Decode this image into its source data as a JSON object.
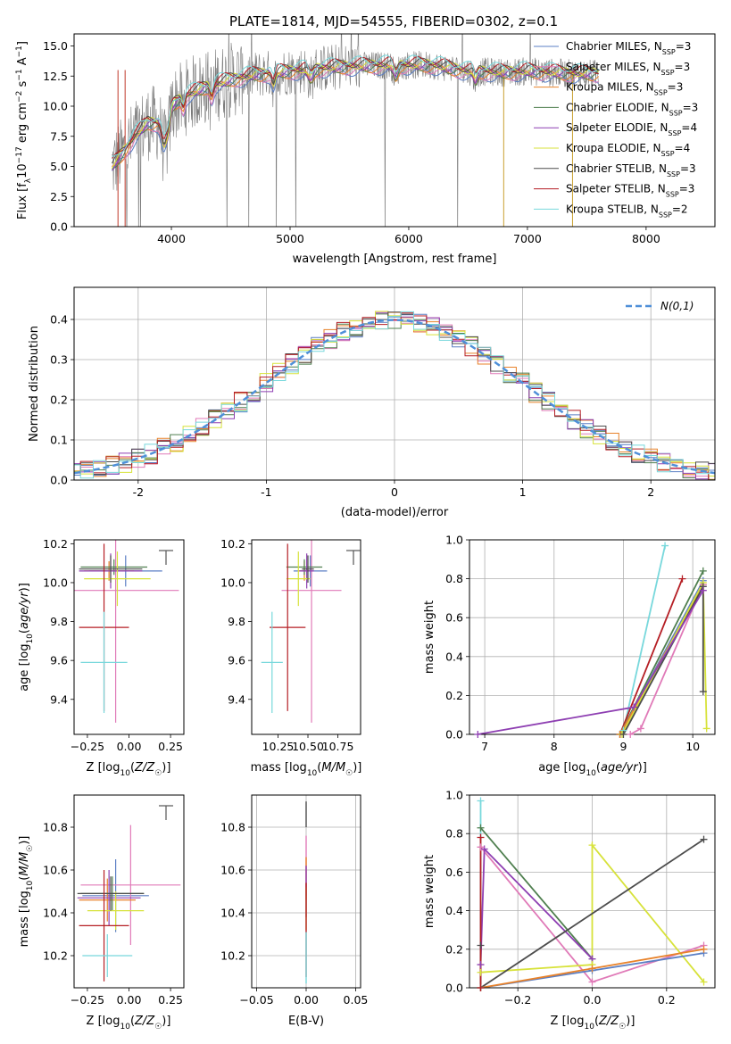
{
  "figure": {
    "title": "PLATE=1814, MJD=54555, FIBERID=0302, z=0.1"
  },
  "colors": {
    "Chabrier MILES": "#5b7fc4",
    "Salpeter MILES": "#e07ab8",
    "Kroupa MILES": "#e8822a",
    "Chabrier ELODIE": "#4f7f4f",
    "Salpeter ELODIE": "#8e3fb2",
    "Kroupa ELODIE": "#d7e23a",
    "Chabrier STELIB": "#4d4d4d",
    "Salpeter STELIB": "#b51e24",
    "Kroupa STELIB": "#78d8dc",
    "normal": "#4f8fd8"
  },
  "chart_data": [
    {
      "type": "line",
      "panel": "spectrum",
      "xlabel": "wavelength [Angstrom, rest frame]",
      "ylabel": "Flux [f_λ 10^-17 erg cm^-2 s^-1 A^-1]",
      "xlim": [
        3180,
        8580
      ],
      "ylim": [
        0,
        16
      ],
      "xticks": [
        4000,
        5000,
        6000,
        7000,
        8000
      ],
      "yticks": [
        "0.0",
        "2.5",
        "5.0",
        "7.5",
        "10.0",
        "12.5",
        "15.0"
      ],
      "legend_position": "right",
      "x": [
        3500,
        3600,
        3700,
        3800,
        3900,
        4000,
        4100,
        4200,
        4300,
        4500,
        4700,
        5000,
        5200,
        5500,
        5800,
        6000,
        6200,
        6500,
        6800,
        7000,
        7200,
        7400,
        7600
      ],
      "y": [
        5.0,
        6.2,
        7.6,
        8.6,
        8.6,
        10.0,
        10.8,
        11.2,
        11.6,
        12.2,
        12.6,
        12.9,
        13.1,
        13.3,
        13.4,
        13.4,
        13.4,
        12.9,
        12.8,
        12.9,
        12.8,
        12.7,
        12.7
      ],
      "series": [
        {
          "name": "Chabrier MILES, N_SSP=3"
        },
        {
          "name": "Salpeter MILES, N_SSP=3"
        },
        {
          "name": "Kroupa MILES, N_SSP=3"
        },
        {
          "name": "Chabrier ELODIE, N_SSP=3"
        },
        {
          "name": "Salpeter ELODIE, N_SSP=4"
        },
        {
          "name": "Kroupa ELODIE, N_SSP=4"
        },
        {
          "name": "Chabrier STELIB, N_SSP=3"
        },
        {
          "name": "Salpeter STELIB, N_SSP=3"
        },
        {
          "name": "Kroupa STELIB, N_SSP=2"
        }
      ]
    },
    {
      "type": "line",
      "panel": "residual-histogram",
      "xlabel": "(data-model)/error",
      "ylabel": "Normed distribution",
      "xlim": [
        -2.5,
        2.5
      ],
      "ylim": [
        0,
        0.48
      ],
      "xticks": [
        -2,
        -1,
        0,
        1,
        2
      ],
      "yticks": [
        "0.0",
        "0.1",
        "0.2",
        "0.3",
        "0.4"
      ],
      "grid": true,
      "legend": "N(0,1)",
      "legend_position": "top-right",
      "bin_width": 0.1
    },
    {
      "type": "scatter",
      "panel": "age-vs-Z",
      "xlabel": "Z [log10(Z/Z☉)]",
      "ylabel": "age [log10(age/yr)]",
      "xlim": [
        -0.33,
        0.33
      ],
      "ylim": [
        9.22,
        10.22
      ],
      "xticks": [
        "−0.25",
        "0.00",
        "0.25"
      ],
      "yticks": [
        "9.4",
        "9.6",
        "9.8",
        "10.0",
        "10.2"
      ],
      "points": [
        {
          "series": "Chabrier MILES",
          "x": -0.02,
          "y": 10.06,
          "xerr": 0.22,
          "yerr": 0.08
        },
        {
          "series": "Salpeter MILES",
          "x": -0.08,
          "y": 9.96,
          "xerr": 0.38,
          "yerr": 0.68
        },
        {
          "series": "Kroupa MILES",
          "x": -0.12,
          "y": 10.06,
          "xerr": 0.15,
          "yerr": 0.05
        },
        {
          "series": "Chabrier ELODIE",
          "x": -0.09,
          "y": 10.08,
          "xerr": 0.2,
          "yerr": 0.04
        },
        {
          "series": "Salpeter ELODIE",
          "x": -0.11,
          "y": 10.06,
          "xerr": 0.19,
          "yerr": 0.09
        },
        {
          "series": "Kroupa ELODIE",
          "x": -0.07,
          "y": 10.02,
          "xerr": 0.2,
          "yerr": 0.14
        },
        {
          "series": "Chabrier STELIB",
          "x": -0.11,
          "y": 10.07,
          "xerr": 0.19,
          "yerr": 0.07
        },
        {
          "series": "Salpeter STELIB",
          "x": -0.15,
          "y": 9.77,
          "xerr": 0.15,
          "yerr": 0.43
        },
        {
          "series": "Kroupa STELIB",
          "x": -0.15,
          "y": 9.59,
          "xerr": 0.14,
          "yerr": 0.26
        }
      ]
    },
    {
      "type": "scatter",
      "panel": "age-vs-mass",
      "xlabel": "mass [log10(M/M☉)]",
      "ylabel": "",
      "xlim": [
        10.03,
        10.94
      ],
      "ylim": [
        9.22,
        10.22
      ],
      "xticks": [
        "10.25",
        "10.50",
        "10.75"
      ],
      "yticks": [
        "9.4",
        "9.6",
        "9.8",
        "10.0",
        "10.2"
      ],
      "points": [
        {
          "series": "Chabrier MILES",
          "x": 10.52,
          "y": 10.06,
          "xerr": 0.14,
          "yerr": 0.08
        },
        {
          "series": "Salpeter MILES",
          "x": 10.53,
          "y": 9.96,
          "xerr": 0.25,
          "yerr": 0.68
        },
        {
          "series": "Kroupa MILES",
          "x": 10.47,
          "y": 10.06,
          "xerr": 0.05,
          "yerr": 0.05
        },
        {
          "series": "Chabrier ELODIE",
          "x": 10.47,
          "y": 10.08,
          "xerr": 0.15,
          "yerr": 0.04
        },
        {
          "series": "Salpeter ELODIE",
          "x": 10.49,
          "y": 10.06,
          "xerr": 0.06,
          "yerr": 0.09
        },
        {
          "series": "Kroupa ELODIE",
          "x": 10.42,
          "y": 10.02,
          "xerr": 0.1,
          "yerr": 0.14
        },
        {
          "series": "Chabrier STELIB",
          "x": 10.5,
          "y": 10.07,
          "xerr": 0.05,
          "yerr": 0.07
        },
        {
          "series": "Salpeter STELIB",
          "x": 10.33,
          "y": 9.77,
          "xerr": 0.15,
          "yerr": 0.43
        },
        {
          "series": "Kroupa STELIB",
          "x": 10.2,
          "y": 9.59,
          "xerr": 0.09,
          "yerr": 0.26
        }
      ]
    },
    {
      "type": "line",
      "panel": "mass-weight-vs-age",
      "xlabel": "age [log10(age/yr)]",
      "ylabel": "mass weight",
      "xlim": [
        6.78,
        10.32
      ],
      "ylim": [
        0,
        1
      ],
      "xticks": [
        "7",
        "8",
        "9",
        "10"
      ],
      "yticks": [
        "0.0",
        "0.2",
        "0.4",
        "0.6",
        "0.8",
        "1.0"
      ],
      "grid": true,
      "series": [
        {
          "key": "Kroupa STELIB",
          "x": [
            9.0,
            9.6
          ],
          "y": [
            0.02,
            0.97
          ]
        },
        {
          "key": "Salpeter STELIB",
          "x": [
            8.95,
            9.85
          ],
          "y": [
            0.0,
            0.8
          ]
        },
        {
          "key": "Chabrier ELODIE",
          "x": [
            8.95,
            10.15
          ],
          "y": [
            0.0,
            0.84
          ]
        },
        {
          "key": "Chabrier MILES",
          "x": [
            8.95,
            10.15
          ],
          "y": [
            0.0,
            0.79
          ]
        },
        {
          "key": "Kroupa MILES",
          "x": [
            8.95,
            10.15
          ],
          "y": [
            0.0,
            0.77
          ]
        },
        {
          "key": "Salpeter MILES",
          "x": [
            9.1,
            9.25,
            10.15
          ],
          "y": [
            0.0,
            0.03,
            0.77
          ]
        },
        {
          "key": "Kroupa ELODIE",
          "x": [
            8.98,
            10.15,
            10.2
          ],
          "y": [
            0.0,
            0.78,
            0.03
          ]
        },
        {
          "key": "Chabrier STELIB",
          "x": [
            9.0,
            10.15,
            10.15
          ],
          "y": [
            0.0,
            0.76,
            0.22
          ]
        },
        {
          "key": "Salpeter ELODIE",
          "x": [
            6.9,
            9.15,
            10.15
          ],
          "y": [
            0.0,
            0.14,
            0.74
          ]
        }
      ]
    },
    {
      "type": "scatter",
      "panel": "mass-vs-Z",
      "xlabel": "Z [log10(Z/Z☉)]",
      "ylabel": "mass [log10(M/M☉)]",
      "xlim": [
        -0.33,
        0.33
      ],
      "ylim": [
        10.05,
        10.95
      ],
      "xticks": [
        "−0.25",
        "0.00",
        "0.25"
      ],
      "yticks": [
        "10.2",
        "10.4",
        "10.6",
        "10.8"
      ],
      "points": [
        {
          "series": "Chabrier MILES",
          "x": -0.08,
          "y": 10.48,
          "xerr": 0.2,
          "yerr": 0.17
        },
        {
          "series": "Salpeter MILES",
          "x": 0.01,
          "y": 10.53,
          "xerr": 0.3,
          "yerr": 0.28
        },
        {
          "series": "Kroupa MILES",
          "x": -0.13,
          "y": 10.46,
          "xerr": 0.17,
          "yerr": 0.1
        },
        {
          "series": "Chabrier ELODIE",
          "x": -0.1,
          "y": 10.49,
          "xerr": 0.19,
          "yerr": 0.08
        },
        {
          "series": "Salpeter ELODIE",
          "x": -0.12,
          "y": 10.47,
          "xerr": 0.19,
          "yerr": 0.13
        },
        {
          "series": "Kroupa ELODIE",
          "x": -0.08,
          "y": 10.41,
          "xerr": 0.17,
          "yerr": 0.09
        },
        {
          "series": "Chabrier STELIB",
          "x": -0.11,
          "y": 10.49,
          "xerr": 0.2,
          "yerr": 0.08
        },
        {
          "series": "Salpeter STELIB",
          "x": -0.15,
          "y": 10.34,
          "xerr": 0.15,
          "yerr": 0.26
        },
        {
          "series": "Kroupa STELIB",
          "x": -0.13,
          "y": 10.2,
          "xerr": 0.15,
          "yerr": 0.1
        }
      ]
    },
    {
      "type": "scatter",
      "panel": "mass-vs-EBV",
      "xlabel": "E(B-V)",
      "ylabel": "",
      "xlim": [
        -0.055,
        0.055
      ],
      "ylim": [
        10.05,
        10.95
      ],
      "xticks": [
        "−0.05",
        "0.00",
        "0.05"
      ],
      "yticks": [
        "10.2",
        "10.4",
        "10.6",
        "10.8"
      ],
      "points": [
        {
          "series": "Chabrier STELIB",
          "x": 0,
          "y": 10.86,
          "yerr": 0.06
        },
        {
          "series": "Salpeter MILES",
          "x": 0,
          "y": 10.62,
          "yerr": 0.14
        },
        {
          "series": "Kroupa MILES",
          "x": 0,
          "y": 10.56,
          "yerr": 0.1
        },
        {
          "series": "Salpeter ELODIE",
          "x": 0,
          "y": 10.5,
          "yerr": 0.12
        },
        {
          "series": "Kroupa ELODIE",
          "x": 0,
          "y": 10.42,
          "yerr": 0.1
        },
        {
          "series": "Salpeter STELIB",
          "x": 0,
          "y": 10.32,
          "yerr": 0.22
        },
        {
          "series": "Kroupa STELIB",
          "x": 0,
          "y": 10.19,
          "yerr": 0.12
        }
      ]
    },
    {
      "type": "line",
      "panel": "mass-weight-vs-Z",
      "xlabel": "Z [log10(Z/Z☉)]",
      "ylabel": "mass weight",
      "xlim": [
        -0.33,
        0.33
      ],
      "ylim": [
        0,
        1
      ],
      "xticks": [
        "−0.2",
        "0.0",
        "0.2"
      ],
      "yticks": [
        "0.0",
        "0.2",
        "0.4",
        "0.6",
        "0.8",
        "1.0"
      ],
      "grid": true,
      "series": [
        {
          "key": "Kroupa STELIB",
          "x": [
            -0.3,
            -0.3
          ],
          "y": [
            0.0,
            0.97
          ]
        },
        {
          "key": "Chabrier ELODIE",
          "x": [
            -0.3,
            0.0
          ],
          "y": [
            0.83,
            0.15
          ]
        },
        {
          "key": "Salpeter ELODIE",
          "x": [
            -0.3,
            -0.29,
            0.0
          ],
          "y": [
            0.12,
            0.72,
            0.15
          ]
        },
        {
          "key": "Salpeter MILES",
          "x": [
            -0.3,
            0.0,
            0.3
          ],
          "y": [
            0.73,
            0.03,
            0.22
          ]
        },
        {
          "key": "Kroupa ELODIE",
          "x": [
            -0.3,
            0.0,
            0.0,
            0.3
          ],
          "y": [
            0.08,
            0.12,
            0.74,
            0.03
          ]
        },
        {
          "key": "Chabrier STELIB",
          "x": [
            -0.3,
            -0.3,
            0.3
          ],
          "y": [
            0.22,
            0.0,
            0.77
          ]
        },
        {
          "key": "Chabrier MILES",
          "x": [
            -0.3,
            0.0,
            0.3
          ],
          "y": [
            0.0,
            0.09,
            0.18
          ]
        },
        {
          "key": "Kroupa MILES",
          "x": [
            -0.3,
            0.0,
            0.3
          ],
          "y": [
            0.0,
            0.1,
            0.2
          ]
        },
        {
          "key": "Salpeter STELIB",
          "x": [
            -0.3,
            -0.3
          ],
          "y": [
            0.0,
            0.78
          ]
        }
      ]
    }
  ]
}
